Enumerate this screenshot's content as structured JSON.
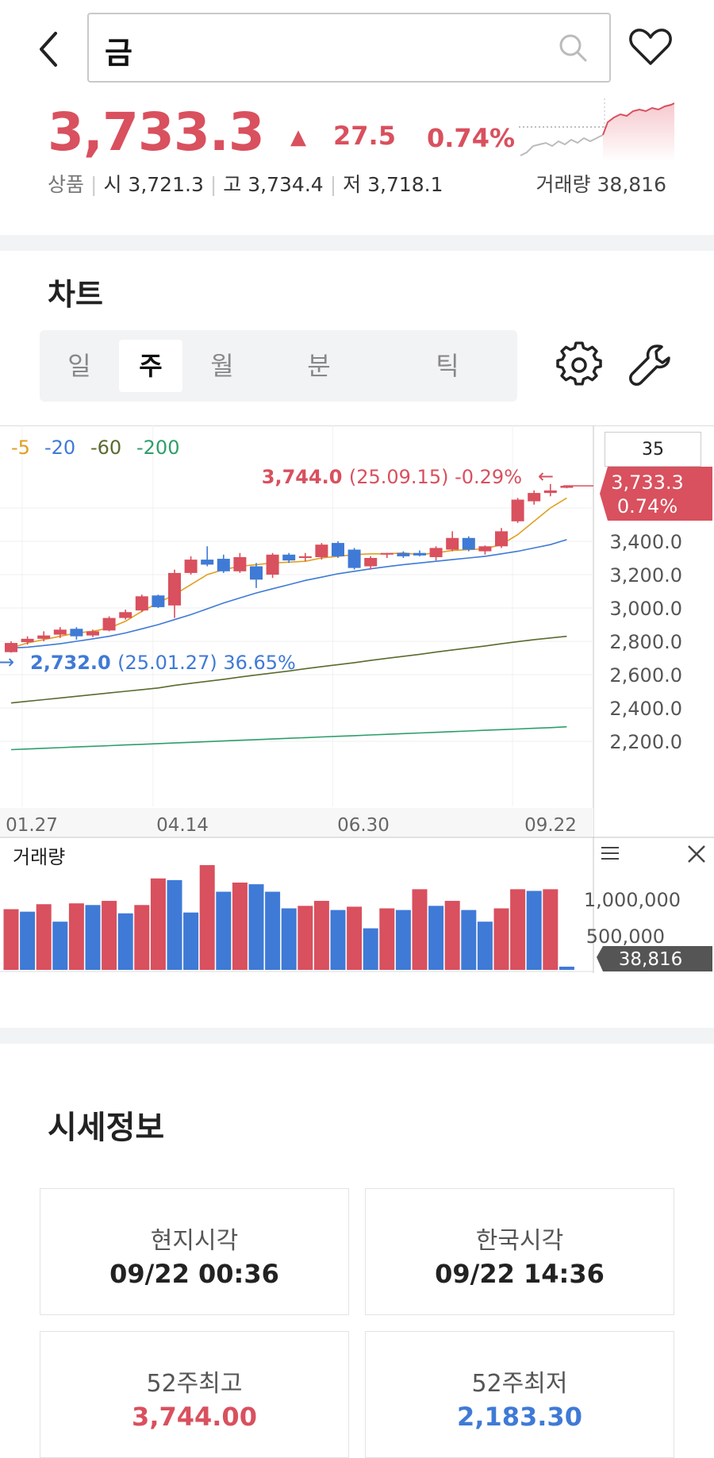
{
  "header": {
    "search_value": "금",
    "icons": {
      "back": "chevron-left-icon",
      "search": "search-icon",
      "favorite": "heart-icon"
    }
  },
  "quote": {
    "price": "3,733.3",
    "change_arrow": "▲",
    "change": "27.5",
    "change_pct": "0.74%",
    "type_label": "상품",
    "open_label": "시",
    "open": "3,721.3",
    "high_label": "고",
    "high": "3,734.4",
    "low_label": "저",
    "low": "3,718.1",
    "volume_label": "거래량",
    "volume": "38,816",
    "color_up": "#d9505e",
    "color_down": "#3f7ad6"
  },
  "chart_section": {
    "title": "차트",
    "tabs": [
      {
        "label": "일",
        "active": false
      },
      {
        "label": "주",
        "active": true
      },
      {
        "label": "월",
        "active": false
      },
      {
        "label": "분",
        "active": false
      },
      {
        "label": "틱",
        "active": false
      }
    ],
    "icons": {
      "settings": "gear-icon",
      "tools": "wrench-icon"
    }
  },
  "chart_data": {
    "type": "candlestick",
    "period": "weekly",
    "legend": [
      {
        "label": "5",
        "color": "#e0a020"
      },
      {
        "label": "20",
        "color": "#3f7ad6"
      },
      {
        "label": "60",
        "color": "#5a6b2e"
      },
      {
        "label": "200",
        "color": "#2e9e6a"
      }
    ],
    "zoom": "35",
    "y_ticks": [
      "3,400.0",
      "3,200.0",
      "3,000.0",
      "2,800.0",
      "2,600.0",
      "2,400.0",
      "2,200.0"
    ],
    "y_range": [
      2000,
      3800
    ],
    "x_ticks": [
      "01.27",
      "04.14",
      "06.30",
      "09.22"
    ],
    "current_price_badge": {
      "price": "3,733.3",
      "pct": "0.74%"
    },
    "max_annotation": {
      "value": "3,744.0",
      "date": "(25.09.15)",
      "pct": "-0.29%"
    },
    "min_annotation": {
      "value": "2,732.0",
      "date": "(25.01.27)",
      "pct": "36.65%"
    },
    "candles": [
      {
        "o": 2735,
        "h": 2800,
        "l": 2732,
        "c": 2790,
        "up": true
      },
      {
        "o": 2795,
        "h": 2830,
        "l": 2780,
        "c": 2815,
        "up": true
      },
      {
        "o": 2815,
        "h": 2860,
        "l": 2800,
        "c": 2835,
        "up": true
      },
      {
        "o": 2840,
        "h": 2885,
        "l": 2820,
        "c": 2870,
        "up": true
      },
      {
        "o": 2875,
        "h": 2885,
        "l": 2810,
        "c": 2830,
        "up": false
      },
      {
        "o": 2835,
        "h": 2870,
        "l": 2825,
        "c": 2860,
        "up": true
      },
      {
        "o": 2865,
        "h": 2950,
        "l": 2860,
        "c": 2940,
        "up": true
      },
      {
        "o": 2940,
        "h": 2990,
        "l": 2930,
        "c": 2975,
        "up": true
      },
      {
        "o": 2985,
        "h": 3080,
        "l": 2975,
        "c": 3070,
        "up": true
      },
      {
        "o": 3075,
        "h": 3080,
        "l": 3000,
        "c": 3005,
        "up": false
      },
      {
        "o": 3015,
        "h": 3230,
        "l": 2940,
        "c": 3210,
        "up": true
      },
      {
        "o": 3210,
        "h": 3310,
        "l": 3200,
        "c": 3290,
        "up": true
      },
      {
        "o": 3290,
        "h": 3370,
        "l": 3250,
        "c": 3260,
        "up": false
      },
      {
        "o": 3295,
        "h": 3320,
        "l": 3210,
        "c": 3220,
        "up": false
      },
      {
        "o": 3220,
        "h": 3330,
        "l": 3210,
        "c": 3305,
        "up": true
      },
      {
        "o": 3250,
        "h": 3270,
        "l": 3120,
        "c": 3170,
        "up": false
      },
      {
        "o": 3200,
        "h": 3330,
        "l": 3180,
        "c": 3320,
        "up": true
      },
      {
        "o": 3320,
        "h": 3330,
        "l": 3270,
        "c": 3285,
        "up": false
      },
      {
        "o": 3300,
        "h": 3330,
        "l": 3280,
        "c": 3310,
        "up": true
      },
      {
        "o": 3305,
        "h": 3390,
        "l": 3290,
        "c": 3380,
        "up": true
      },
      {
        "o": 3390,
        "h": 3400,
        "l": 3300,
        "c": 3310,
        "up": false
      },
      {
        "o": 3350,
        "h": 3360,
        "l": 3230,
        "c": 3240,
        "up": false
      },
      {
        "o": 3250,
        "h": 3310,
        "l": 3230,
        "c": 3300,
        "up": true
      },
      {
        "o": 3320,
        "h": 3330,
        "l": 3300,
        "c": 3330,
        "up": true
      },
      {
        "o": 3330,
        "h": 3340,
        "l": 3300,
        "c": 3310,
        "up": false
      },
      {
        "o": 3330,
        "h": 3345,
        "l": 3310,
        "c": 3315,
        "up": false
      },
      {
        "o": 3305,
        "h": 3370,
        "l": 3285,
        "c": 3360,
        "up": true
      },
      {
        "o": 3350,
        "h": 3460,
        "l": 3340,
        "c": 3420,
        "up": true
      },
      {
        "o": 3420,
        "h": 3430,
        "l": 3340,
        "c": 3350,
        "up": false
      },
      {
        "o": 3340,
        "h": 3375,
        "l": 3320,
        "c": 3370,
        "up": true
      },
      {
        "o": 3370,
        "h": 3480,
        "l": 3360,
        "c": 3460,
        "up": true
      },
      {
        "o": 3520,
        "h": 3660,
        "l": 3510,
        "c": 3650,
        "up": true
      },
      {
        "o": 3640,
        "h": 3705,
        "l": 3620,
        "c": 3690,
        "up": true
      },
      {
        "o": 3690,
        "h": 3744,
        "l": 3670,
        "c": 3705,
        "up": true
      },
      {
        "o": 3721,
        "h": 3734,
        "l": 3718,
        "c": 3733,
        "up": true
      }
    ],
    "ma5": [
      2760,
      2790,
      2810,
      2830,
      2850,
      2860,
      2880,
      2920,
      2980,
      3030,
      3080,
      3140,
      3200,
      3230,
      3250,
      3260,
      3270,
      3275,
      3280,
      3300,
      3310,
      3320,
      3325,
      3325,
      3330,
      3320,
      3330,
      3345,
      3350,
      3355,
      3380,
      3440,
      3520,
      3600,
      3660
    ],
    "ma20": [
      2760,
      2765,
      2775,
      2785,
      2800,
      2815,
      2830,
      2850,
      2875,
      2900,
      2930,
      2960,
      2995,
      3030,
      3060,
      3090,
      3115,
      3140,
      3165,
      3185,
      3205,
      3220,
      3235,
      3248,
      3260,
      3270,
      3280,
      3290,
      3300,
      3310,
      3325,
      3340,
      3360,
      3380,
      3410
    ],
    "ma60": [
      2430,
      2440,
      2450,
      2460,
      2470,
      2480,
      2490,
      2500,
      2510,
      2520,
      2535,
      2548,
      2560,
      2572,
      2585,
      2598,
      2610,
      2622,
      2635,
      2648,
      2660,
      2672,
      2685,
      2698,
      2710,
      2722,
      2735,
      2748,
      2760,
      2772,
      2785,
      2798,
      2810,
      2820,
      2830
    ],
    "ma200": [
      2150,
      2154,
      2158,
      2162,
      2166,
      2170,
      2174,
      2178,
      2182,
      2186,
      2190,
      2194,
      2198,
      2202,
      2206,
      2210,
      2214,
      2218,
      2222,
      2226,
      2230,
      2234,
      2238,
      2242,
      2246,
      2250,
      2254,
      2258,
      2262,
      2266,
      2270,
      2274,
      2278,
      2282,
      2287
    ],
    "volume": {
      "label": "거래량",
      "y_ticks": [
        "1,000,000",
        "500,000"
      ],
      "current": "38,816",
      "values": [
        730000,
        700000,
        790000,
        580000,
        800000,
        780000,
        830000,
        680000,
        780000,
        1100000,
        1080000,
        690000,
        1260000,
        940000,
        1050000,
        1030000,
        940000,
        740000,
        770000,
        830000,
        720000,
        760000,
        500000,
        740000,
        720000,
        970000,
        770000,
        830000,
        720000,
        580000,
        740000,
        970000,
        950000,
        970000,
        38816
      ],
      "up": [
        true,
        false,
        true,
        false,
        true,
        false,
        true,
        false,
        true,
        true,
        false,
        false,
        true,
        false,
        true,
        false,
        false,
        false,
        true,
        true,
        false,
        true,
        false,
        true,
        false,
        true,
        false,
        true,
        false,
        false,
        true,
        true,
        false,
        true,
        false
      ]
    }
  },
  "info_section": {
    "title": "시세정보",
    "cards": [
      {
        "label": "현지시각",
        "value": "09/22 00:36",
        "tone": ""
      },
      {
        "label": "한국시각",
        "value": "09/22 14:36",
        "tone": ""
      },
      {
        "label": "52주최고",
        "value": "3,744.00",
        "tone": "up"
      },
      {
        "label": "52주최저",
        "value": "2,183.30",
        "tone": "down"
      }
    ]
  }
}
